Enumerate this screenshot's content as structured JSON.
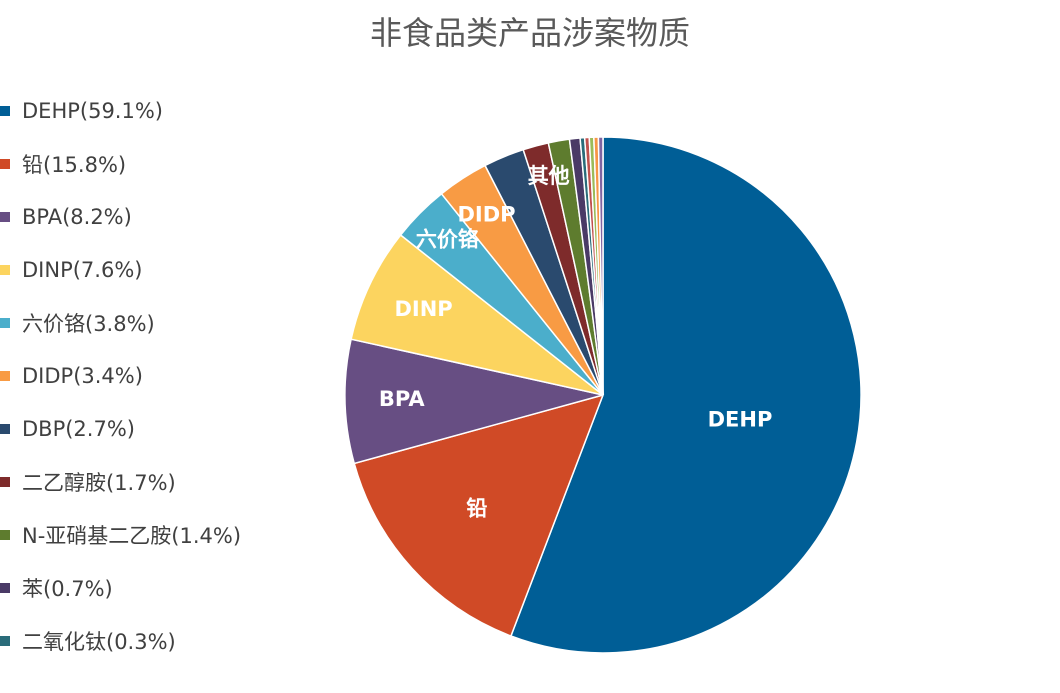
{
  "chart_data": {
    "type": "pie",
    "title": "非食品类产品涉案物质",
    "legend_position": "left",
    "slices": [
      {
        "name": "DEHP",
        "value": 59.1,
        "legend": "DEHP(59.1%)",
        "label": "DEHP",
        "color": "#005E96"
      },
      {
        "name": "铅",
        "value": 15.8,
        "legend": "铅(15.8%)",
        "label": "铅",
        "color": "#D04A26"
      },
      {
        "name": "BPA",
        "value": 8.2,
        "legend": "BPA(8.2%)",
        "label": "BPA",
        "color": "#674E83"
      },
      {
        "name": "DINP",
        "value": 7.6,
        "legend": "DINP(7.6%)",
        "label": "DINP",
        "color": "#FCD45F"
      },
      {
        "name": "六价铬",
        "value": 3.8,
        "legend": "六价铬(3.8%)",
        "label": "六价铬",
        "color": "#4BAECB"
      },
      {
        "name": "DIDP",
        "value": 3.4,
        "legend": "DIDP(3.4%)",
        "label": "DIDP",
        "color": "#F89B44"
      },
      {
        "name": "DBP",
        "value": 2.7,
        "legend": "DBP(2.7%)",
        "label": "",
        "color": "#2A4A6E"
      },
      {
        "name": "二乙醇胺",
        "value": 1.7,
        "legend": "二乙醇胺(1.7%)",
        "label": "",
        "color": "#7E2B2B"
      },
      {
        "name": "N-亚硝基二乙胺",
        "value": 1.4,
        "legend": "N-亚硝基二乙胺(1.4%)",
        "label": "",
        "color": "#5E7C2E"
      },
      {
        "name": "苯",
        "value": 0.7,
        "legend": "苯(0.7%)",
        "label": "",
        "color": "#4A3A66"
      },
      {
        "name": "二氧化钛",
        "value": 0.3,
        "legend": "二氧化钛(0.3%)",
        "label": "",
        "color": "#2A6C7A"
      },
      {
        "name": "",
        "value": 0.3,
        "legend": "",
        "label": "",
        "color": "#C0504D"
      },
      {
        "name": "",
        "value": 0.3,
        "legend": "",
        "label": "",
        "color": "#9BBB59"
      },
      {
        "name": "",
        "value": 0.3,
        "legend": "",
        "label": "",
        "color": "#F79646"
      },
      {
        "name": "",
        "value": 0.3,
        "legend": "",
        "label": "",
        "color": "#8064A2"
      }
    ],
    "annotations": [
      "其他"
    ]
  }
}
